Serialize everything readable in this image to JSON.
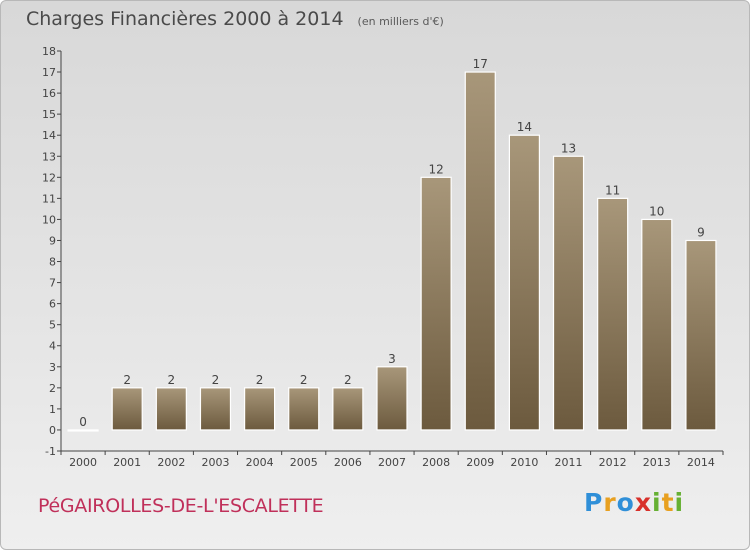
{
  "title": "Charges Financières 2000 à 2014",
  "subtitle": "(en milliers d'€)",
  "commune": "PéGAIROLLES-DE-L'ESCALETTE",
  "brand": {
    "letters": [
      "P",
      "r",
      "o",
      "x",
      "i",
      "t",
      "i"
    ],
    "colors": [
      "#2f8fd8",
      "#e8a020",
      "#2f8fd8",
      "#d8302a",
      "#66b033",
      "#e8a020",
      "#66b033"
    ]
  },
  "chart_data": {
    "type": "bar",
    "categories": [
      "2000",
      "2001",
      "2002",
      "2003",
      "2004",
      "2005",
      "2006",
      "2007",
      "2008",
      "2009",
      "2010",
      "2011",
      "2012",
      "2013",
      "2014"
    ],
    "values": [
      0,
      2,
      2,
      2,
      2,
      2,
      2,
      3,
      12,
      17,
      14,
      13,
      11,
      10,
      9
    ],
    "ylim": [
      -1,
      18
    ],
    "yticks": [
      -1,
      0,
      1,
      2,
      3,
      4,
      5,
      6,
      7,
      8,
      9,
      10,
      11,
      12,
      13,
      14,
      15,
      16,
      17,
      18
    ],
    "grid": false,
    "bar_color": "#8c7a5e"
  }
}
